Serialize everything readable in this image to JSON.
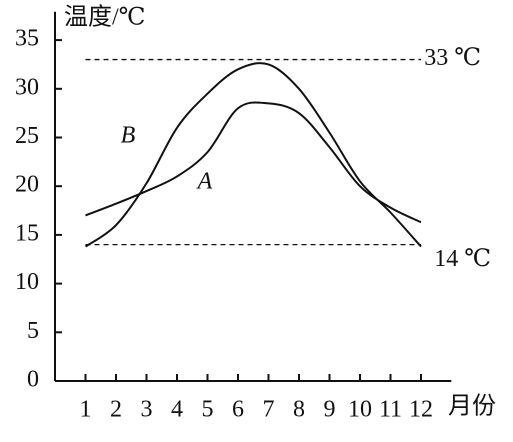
{
  "chart_data": {
    "type": "line",
    "y_label": "温度/℃",
    "x_label": "月份",
    "x": [
      1,
      2,
      3,
      4,
      5,
      6,
      7,
      8,
      9,
      10,
      11,
      12
    ],
    "series": [
      {
        "name": "A",
        "color": "#111111",
        "values": [
          17,
          18.2,
          19.5,
          21,
          23.5,
          28,
          28.5,
          27.5,
          24,
          20,
          17.8,
          16.3
        ]
      },
      {
        "name": "B",
        "color": "#111111",
        "values": [
          13.8,
          16,
          20.3,
          26,
          29.5,
          32,
          32.5,
          30,
          25.5,
          20.5,
          17.3,
          13.8
        ]
      }
    ],
    "reference_lines": [
      {
        "value": 33,
        "label": "33 ℃"
      },
      {
        "value": 14,
        "label": "14 ℃"
      }
    ],
    "xlim": [
      0,
      12.6
    ],
    "ylim": [
      0,
      37.5
    ],
    "xticks": [
      1,
      2,
      3,
      4,
      5,
      6,
      7,
      8,
      9,
      10,
      11,
      12
    ],
    "yticks": [
      0,
      5,
      10,
      15,
      20,
      25,
      30,
      35
    ],
    "grid": false
  }
}
